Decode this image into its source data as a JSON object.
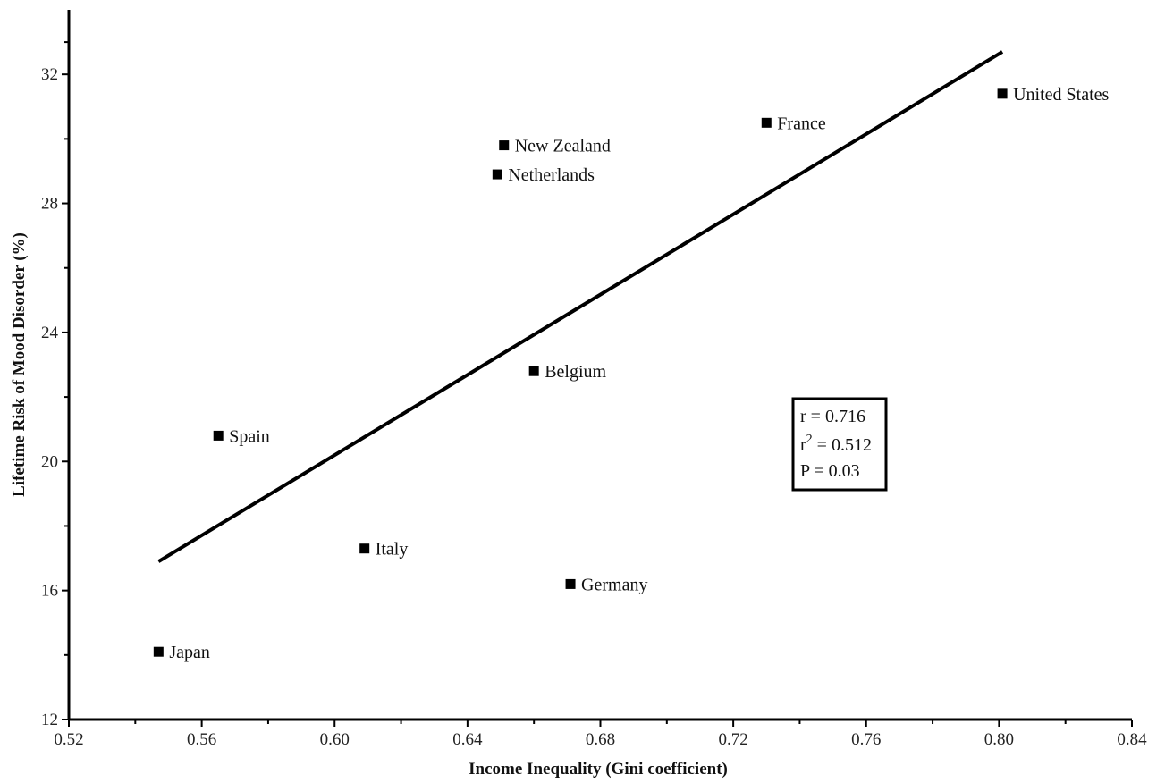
{
  "chart_data": {
    "type": "scatter",
    "title": "",
    "xlabel": "Income Inequality (Gini coefficient)",
    "ylabel": "Lifetime Risk of Mood Disorder (%)",
    "xlim": [
      0.52,
      0.84
    ],
    "ylim": [
      12,
      34
    ],
    "x_ticks": [
      0.52,
      0.56,
      0.6,
      0.64,
      0.68,
      0.72,
      0.76,
      0.8,
      0.84
    ],
    "x_tick_labels": [
      "0.52",
      "0.56",
      "0.60",
      "0.64",
      "0.68",
      "0.72",
      "0.76",
      "0.80",
      "0.84"
    ],
    "y_ticks": [
      12,
      16,
      20,
      24,
      28,
      32
    ],
    "y_tick_labels": [
      "12",
      "16",
      "20",
      "24",
      "28",
      "32"
    ],
    "points": [
      {
        "label": "United States",
        "x": 0.801,
        "y": 31.4
      },
      {
        "label": "France",
        "x": 0.73,
        "y": 30.5
      },
      {
        "label": "New Zealand",
        "x": 0.651,
        "y": 29.8
      },
      {
        "label": "Netherlands",
        "x": 0.649,
        "y": 28.9
      },
      {
        "label": "Belgium",
        "x": 0.66,
        "y": 22.8
      },
      {
        "label": "Spain",
        "x": 0.565,
        "y": 20.8
      },
      {
        "label": "Italy",
        "x": 0.609,
        "y": 17.3
      },
      {
        "label": "Germany",
        "x": 0.671,
        "y": 16.2
      },
      {
        "label": "Japan",
        "x": 0.547,
        "y": 14.1
      }
    ],
    "trend_line": {
      "x": [
        0.547,
        0.801
      ],
      "y": [
        16.9,
        32.7
      ]
    },
    "stats": {
      "r": "r = 0.716",
      "r2_prefix": "r",
      "r2_sup": "2",
      "r2_value": " = 0.512",
      "p": "P = 0.03"
    },
    "grid": false,
    "legend": "none"
  }
}
